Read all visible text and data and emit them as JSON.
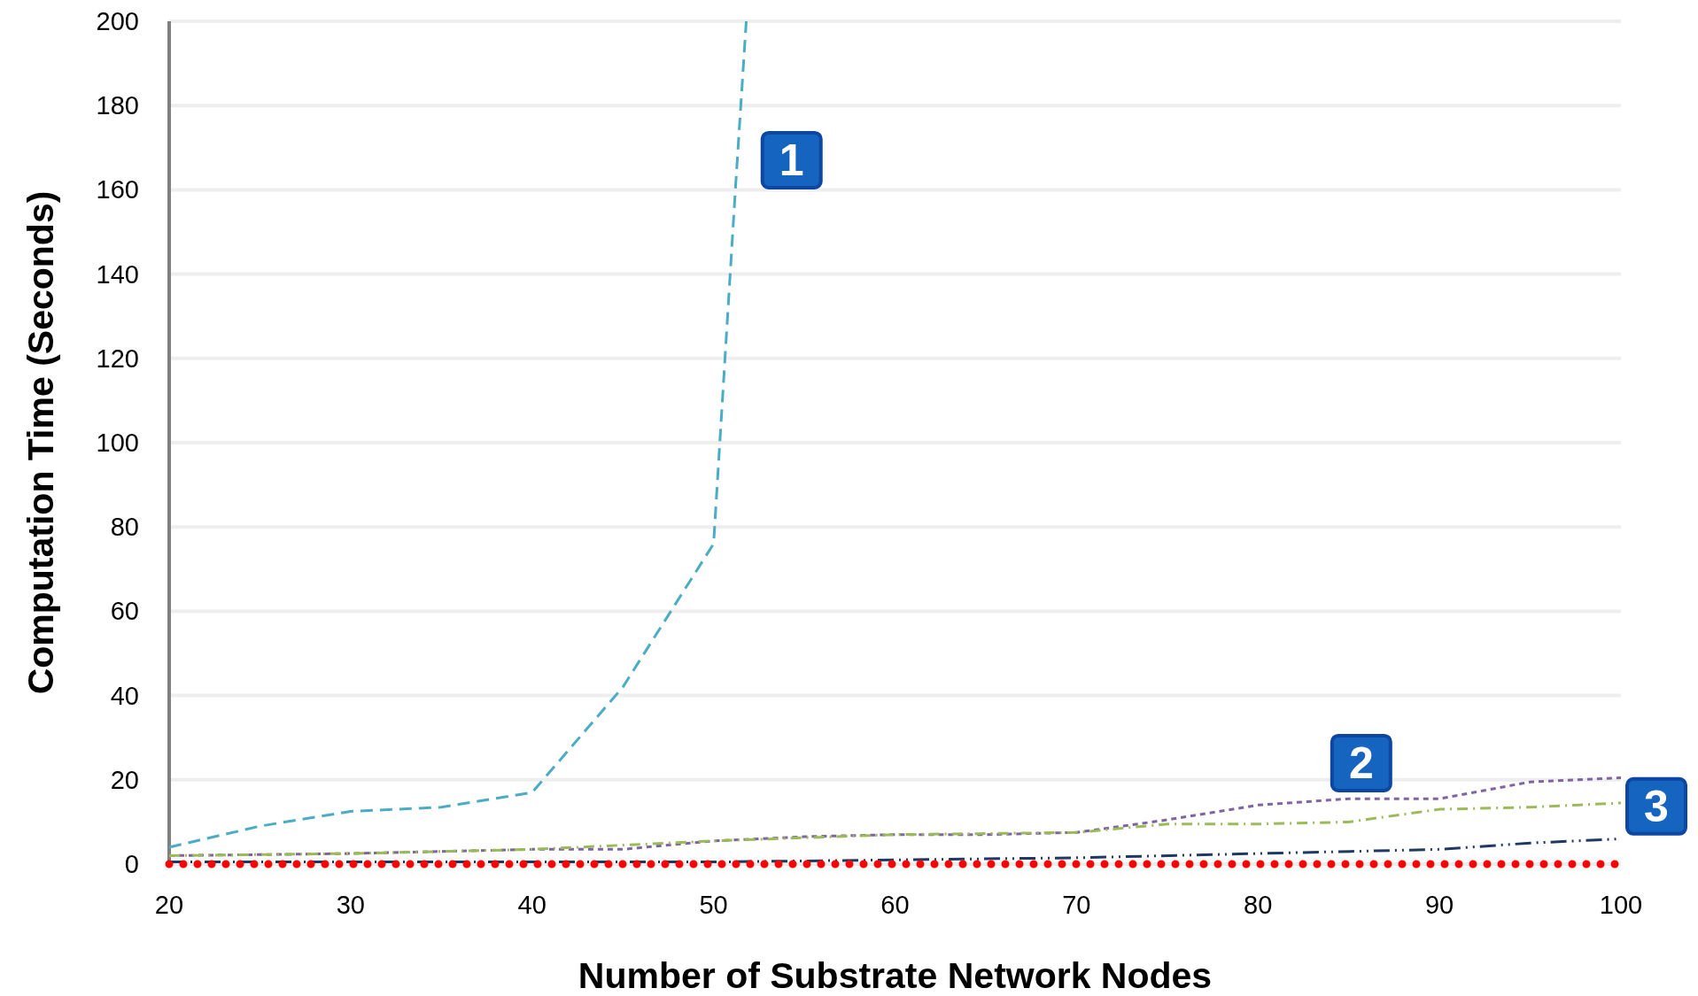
{
  "chart_data": {
    "type": "line",
    "xlabel": "Number of Substrate Network Nodes",
    "ylabel": "Computation Time (Seconds)",
    "xlim": [
      20,
      100
    ],
    "xticks": [
      20,
      30,
      40,
      50,
      60,
      70,
      80,
      90,
      100
    ],
    "ylim": [
      0,
      200
    ],
    "yticks": [
      0,
      20,
      40,
      60,
      80,
      100,
      120,
      140,
      160,
      180,
      200
    ],
    "grid": "y",
    "series": [
      {
        "color": "#4bacc6",
        "line_style": "dashed",
        "x": [
          20,
          25,
          30,
          35,
          40,
          45,
          50,
          51.2,
          51.8
        ],
        "values": [
          4,
          9,
          12.5,
          13.5,
          17,
          42,
          76,
          160,
          200
        ]
      },
      {
        "color": "#8064a2",
        "line_style": "dotted",
        "x": [
          20,
          30,
          40,
          45,
          50,
          55,
          60,
          65,
          70,
          75,
          80,
          85,
          90,
          95,
          100
        ],
        "values": [
          2,
          2.5,
          3.5,
          3.5,
          5.5,
          6.5,
          7,
          7,
          7.5,
          10.5,
          14,
          15.5,
          15.5,
          19.5,
          20.5
        ]
      },
      {
        "color": "#9bbb59",
        "line_style": "dashdot",
        "x": [
          20,
          30,
          40,
          50,
          60,
          70,
          75,
          80,
          85,
          90,
          95,
          100
        ],
        "values": [
          2,
          2.5,
          3.5,
          5.5,
          7,
          7.5,
          9.5,
          9.5,
          10,
          13,
          13.5,
          14.5
        ]
      },
      {
        "color": "#1f3864",
        "line_style": "dashdotdot",
        "x": [
          20,
          40,
          50,
          60,
          70,
          80,
          90,
          95,
          100
        ],
        "values": [
          0.5,
          0.5,
          0.5,
          1,
          1.5,
          2.5,
          3.5,
          5,
          6
        ]
      },
      {
        "color": "#ff0000",
        "line_style": "dots",
        "x": [
          20,
          100
        ],
        "values": [
          0,
          0
        ]
      }
    ],
    "annotations": [
      "1",
      "2",
      "3"
    ]
  }
}
